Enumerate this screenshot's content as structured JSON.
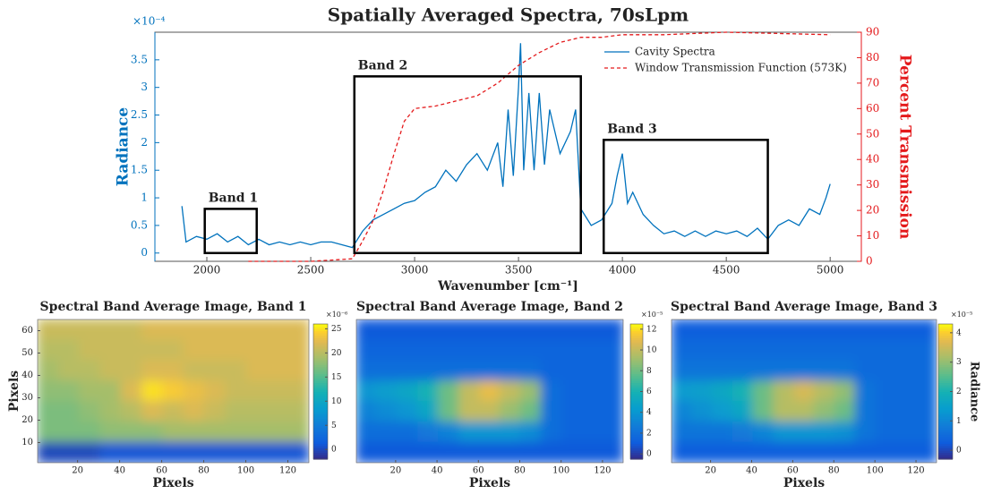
{
  "chart_data": [
    {
      "type": "line",
      "title": "Spatially Averaged Spectra, 70sLpm",
      "xlabel": "Wavenumber [cm⁻¹]",
      "ylabel": "Radiance",
      "y2label": "Percent Transmission",
      "y_multiplier": "×10⁻⁴",
      "xlim": [
        1750,
        5150
      ],
      "xticks": [
        2000,
        2500,
        3000,
        3500,
        4000,
        4500,
        5000
      ],
      "ylim": [
        -0.15,
        4.0
      ],
      "yticks": [
        0,
        0.5,
        1,
        1.5,
        2,
        2.5,
        3,
        3.5
      ],
      "y2lim": [
        0,
        90
      ],
      "y2ticks": [
        0,
        10,
        20,
        30,
        40,
        50,
        60,
        70,
        80,
        90
      ],
      "legend": "upper right",
      "series": [
        {
          "name": "Cavity Spectra",
          "color": "#0072bd",
          "style": "solid",
          "x": [
            1880,
            1900,
            1950,
            2000,
            2050,
            2100,
            2150,
            2200,
            2250,
            2300,
            2350,
            2400,
            2450,
            2500,
            2550,
            2600,
            2650,
            2700,
            2750,
            2800,
            2850,
            2900,
            2950,
            3000,
            3050,
            3100,
            3150,
            3200,
            3250,
            3300,
            3350,
            3400,
            3425,
            3450,
            3475,
            3500,
            3510,
            3525,
            3550,
            3575,
            3600,
            3625,
            3650,
            3700,
            3750,
            3775,
            3800,
            3850,
            3900,
            3950,
            3975,
            4000,
            4025,
            4050,
            4100,
            4150,
            4200,
            4250,
            4300,
            4350,
            4400,
            4450,
            4500,
            4550,
            4600,
            4650,
            4700,
            4750,
            4800,
            4850,
            4900,
            4950,
            4980,
            5000
          ],
          "values": [
            0.85,
            0.2,
            0.3,
            0.25,
            0.35,
            0.2,
            0.3,
            0.15,
            0.25,
            0.15,
            0.2,
            0.15,
            0.2,
            0.15,
            0.2,
            0.2,
            0.15,
            0.1,
            0.4,
            0.6,
            0.7,
            0.8,
            0.9,
            0.95,
            1.1,
            1.2,
            1.5,
            1.3,
            1.6,
            1.8,
            1.5,
            2.0,
            1.2,
            2.6,
            1.4,
            3.0,
            3.8,
            1.5,
            2.9,
            1.5,
            2.9,
            1.6,
            2.6,
            1.8,
            2.2,
            2.6,
            0.8,
            0.5,
            0.6,
            0.9,
            1.4,
            1.8,
            0.9,
            1.1,
            0.7,
            0.5,
            0.35,
            0.4,
            0.3,
            0.4,
            0.3,
            0.4,
            0.35,
            0.4,
            0.3,
            0.45,
            0.25,
            0.5,
            0.6,
            0.5,
            0.8,
            0.7,
            1.0,
            1.25
          ]
        },
        {
          "name": "Window Transmission Function (573K)",
          "color": "#e41a1c",
          "style": "dashed",
          "axis": "y2",
          "x": [
            2200,
            2500,
            2700,
            2750,
            2800,
            2850,
            2900,
            2950,
            3000,
            3100,
            3200,
            3300,
            3400,
            3500,
            3600,
            3700,
            3800,
            3900,
            4000,
            4200,
            4500,
            5000
          ],
          "values": [
            0,
            0,
            1,
            8,
            16,
            28,
            42,
            55,
            60,
            61,
            63,
            65,
            70,
            77,
            82,
            86,
            88,
            88,
            89,
            89,
            90,
            89
          ]
        }
      ],
      "annotations": [
        {
          "label": "Band 1",
          "x": [
            1990,
            2240
          ],
          "y": [
            0,
            0.8
          ]
        },
        {
          "label": "Band 2",
          "x": [
            2710,
            3800
          ],
          "y": [
            0,
            3.2
          ]
        },
        {
          "label": "Band 3",
          "x": [
            3910,
            4700
          ],
          "y": [
            0,
            2.05
          ]
        }
      ]
    },
    {
      "type": "heatmap",
      "title": "Spectral Band Average Image, Band 1",
      "xlabel": "Pixels",
      "ylabel": "Pixels",
      "xlim": [
        1,
        130
      ],
      "xticks": [
        20,
        40,
        60,
        80,
        100,
        120
      ],
      "ylim": [
        1,
        65
      ],
      "yticks": [
        10,
        20,
        30,
        40,
        50,
        60
      ],
      "clim": [
        -2,
        26
      ],
      "cticks": [
        0,
        5,
        10,
        15,
        20,
        25
      ],
      "c_multiplier": "×10⁻⁶",
      "z": [
        [
          21,
          21,
          21,
          21,
          21,
          22,
          22,
          22,
          22,
          22,
          22,
          22,
          22
        ],
        [
          20,
          20,
          21,
          21,
          21,
          21,
          21,
          22,
          22,
          22,
          22,
          22,
          22
        ],
        [
          19,
          20,
          20,
          21,
          21,
          22,
          22,
          21,
          21,
          21,
          22,
          22,
          22
        ],
        [
          18,
          18,
          19,
          19,
          22,
          25,
          24,
          23,
          22,
          21,
          21,
          21,
          21
        ],
        [
          17,
          17,
          18,
          19,
          20,
          22,
          21,
          22,
          21,
          20,
          20,
          20,
          20
        ],
        [
          17,
          17,
          17,
          18,
          18,
          18,
          19,
          19,
          19,
          19,
          19,
          19,
          19
        ],
        [
          0,
          0,
          0,
          1,
          1,
          1,
          1,
          1,
          1,
          1,
          1,
          1,
          1
        ]
      ]
    },
    {
      "type": "heatmap",
      "title": "Spectral Band Average Image, Band 2",
      "xlabel": "Pixels",
      "xlim": [
        1,
        130
      ],
      "xticks": [
        20,
        40,
        60,
        80,
        100,
        120
      ],
      "ylim": [
        1,
        65
      ],
      "clim": [
        -0.5,
        12.5
      ],
      "cticks": [
        0,
        2,
        4,
        6,
        8,
        10,
        12
      ],
      "c_multiplier": "×10⁻⁵",
      "z": [
        [
          1,
          1,
          1,
          1,
          1,
          1,
          1,
          1,
          1,
          1,
          1,
          1,
          1
        ],
        [
          1.5,
          1.5,
          1.5,
          1.5,
          1.5,
          1.5,
          1.5,
          1.5,
          1.5,
          1.5,
          1.5,
          1.5,
          1.5
        ],
        [
          2,
          2,
          2,
          2,
          2,
          2,
          2,
          2,
          2,
          1.5,
          1.5,
          1.5,
          1.5
        ],
        [
          4,
          4.5,
          5,
          6,
          8,
          10,
          11,
          10,
          9,
          2,
          1.5,
          1.5,
          1.5
        ],
        [
          3,
          3.5,
          4,
          5,
          8,
          10,
          10,
          9,
          8,
          2,
          1.5,
          1.5,
          1.5
        ],
        [
          2,
          2,
          2,
          2.5,
          3,
          4,
          4,
          4,
          3.5,
          2,
          1.5,
          1.5,
          1.5
        ],
        [
          1,
          1,
          1,
          1,
          1,
          1,
          1,
          1,
          1,
          1,
          1,
          1,
          1
        ]
      ]
    },
    {
      "type": "heatmap",
      "title": "Spectral Band Average Image, Band 3",
      "xlabel": "Pixels",
      "xlim": [
        1,
        130
      ],
      "xticks": [
        20,
        40,
        60,
        80,
        100,
        120
      ],
      "ylim": [
        1,
        65
      ],
      "clim": [
        -0.3,
        4.3
      ],
      "cticks": [
        0,
        1,
        2,
        3,
        4
      ],
      "c_multiplier": "×10⁻⁵",
      "clabel": "Radiance",
      "z": [
        [
          0.3,
          0.3,
          0.3,
          0.3,
          0.3,
          0.3,
          0.3,
          0.3,
          0.3,
          0.3,
          0.3,
          0.3,
          0.3
        ],
        [
          0.5,
          0.5,
          0.5,
          0.5,
          0.5,
          0.5,
          0.5,
          0.5,
          0.5,
          0.5,
          0.5,
          0.5,
          0.5
        ],
        [
          0.7,
          0.7,
          0.7,
          0.7,
          0.7,
          0.7,
          0.7,
          0.7,
          0.7,
          0.5,
          0.5,
          0.5,
          0.5
        ],
        [
          1.4,
          1.5,
          1.7,
          2,
          2.7,
          3.3,
          3.6,
          3.3,
          3,
          0.7,
          0.5,
          0.5,
          0.5
        ],
        [
          1,
          1.2,
          1.4,
          1.7,
          2.7,
          3.3,
          3.3,
          3,
          2.7,
          0.7,
          0.5,
          0.5,
          0.5
        ],
        [
          0.7,
          0.7,
          0.7,
          0.8,
          1,
          1.3,
          1.3,
          1.3,
          1.2,
          0.7,
          0.5,
          0.5,
          0.5
        ],
        [
          0.3,
          0.3,
          0.3,
          0.3,
          0.3,
          0.3,
          0.3,
          0.3,
          0.3,
          0.3,
          0.3,
          0.3,
          0.3
        ]
      ]
    }
  ]
}
